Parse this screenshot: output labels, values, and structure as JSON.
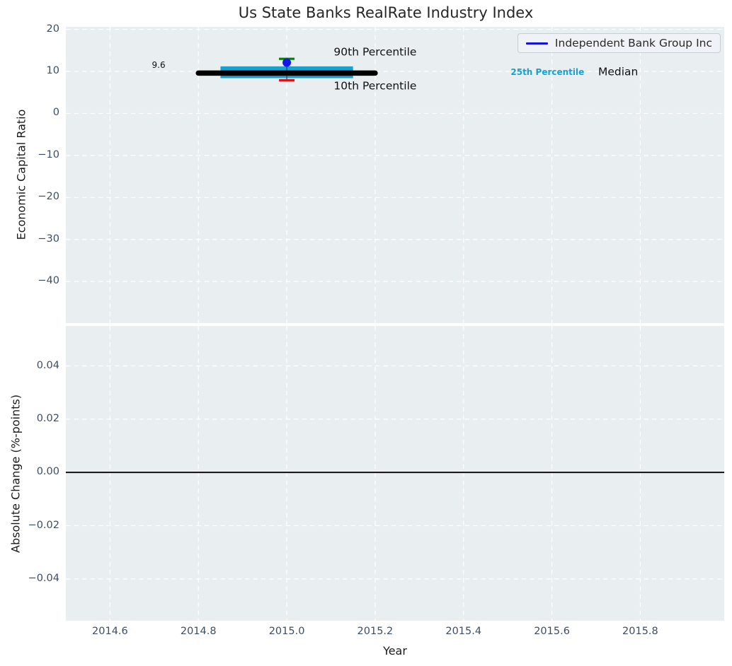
{
  "figure": {
    "title": "Us State Banks RealRate Industry Index",
    "background": "#ffffff",
    "plot_background": "#e9eef1",
    "grid_color": "#ffffff",
    "tick_color": "#3d4d63",
    "text_color": "#262626"
  },
  "legend": {
    "label": "Independent Bank Group Inc",
    "line_color": "#1111e0",
    "position": "upper right"
  },
  "chart_data": [
    {
      "type": "line",
      "title": "Us State Banks RealRate Industry Index",
      "xlabel": "Year",
      "ylabel": "Economic Capital Ratio",
      "xlim": [
        2014.5,
        2015.99
      ],
      "ylim": [
        -49.9,
        20.6
      ],
      "xtick_values": [
        2014.6,
        2014.8,
        2015.0,
        2015.2,
        2015.4,
        2015.6,
        2015.8
      ],
      "xtick_labels": [
        "2014.6",
        "2014.8",
        "2015.0",
        "2015.2",
        "2015.4",
        "2015.6",
        "2015.8"
      ],
      "ytick_values": [
        20,
        10,
        0,
        -10,
        -20,
        -30,
        -40
      ],
      "ytick_labels": [
        "20",
        "10",
        "0",
        "−10",
        "−20",
        "−30",
        "−40"
      ],
      "grid": {
        "style": "dashed",
        "color": "#ffffff"
      },
      "legend_position": "upper right",
      "series": [
        {
          "name": "Independent Bank Group Inc",
          "type": "scatter",
          "color": "#1515ee",
          "x": [
            2015.0
          ],
          "y": [
            12.1
          ]
        }
      ],
      "percentile_overlay": {
        "median": {
          "value": 9.6,
          "x_start": 2014.8,
          "x_end": 2015.2,
          "color": "#000000",
          "value_label": "9.6"
        },
        "iqr_box": {
          "p25": 8.4,
          "p75": 11.2,
          "x_start": 2014.85,
          "x_end": 2015.15,
          "color": "#18a0cf"
        },
        "whisker_x": 2015.0,
        "whisker_color": "#3a3a3a",
        "p90": {
          "value": 13.0,
          "cap_color": "#008000"
        },
        "p10": {
          "value": 7.9,
          "cap_color": "#e41010"
        }
      },
      "annotations": [
        {
          "text": "90th Percentile",
          "x": 2015.2,
          "y": 14.5,
          "color": "#111111",
          "size": 15.5,
          "weight": "normal"
        },
        {
          "text": "10th Percentile",
          "x": 2015.2,
          "y": 6.4,
          "color": "#111111",
          "size": 15.5,
          "weight": "normal"
        },
        {
          "text": "25th Percentile",
          "x": 2015.59,
          "y": 9.9,
          "color": "#18a0cf",
          "size": 12,
          "weight": "bold"
        },
        {
          "text": "Median",
          "x": 2015.75,
          "y": 9.8,
          "color": "#111111",
          "size": 15.5,
          "weight": "normal"
        },
        {
          "text": "9.6",
          "x": 2014.71,
          "y": 11.5,
          "color": "#111111",
          "size": 12,
          "weight": "normal"
        }
      ]
    },
    {
      "type": "line",
      "xlabel": "Year",
      "ylabel": "Absolute Change (%-points)",
      "xlim": [
        2014.5,
        2015.99
      ],
      "ylim": [
        -0.0557,
        0.055
      ],
      "xtick_values": [
        2014.6,
        2014.8,
        2015.0,
        2015.2,
        2015.4,
        2015.6,
        2015.8
      ],
      "xtick_labels": [
        "2014.6",
        "2014.8",
        "2015.0",
        "2015.2",
        "2015.4",
        "2015.6",
        "2015.8"
      ],
      "ytick_values": [
        0.04,
        0.02,
        0.0,
        -0.02,
        -0.04
      ],
      "ytick_labels": [
        "0.04",
        "0.02",
        "0.00",
        "−0.02",
        "−0.04"
      ],
      "grid": {
        "style": "dashed",
        "color": "#ffffff"
      },
      "zero_line": {
        "y": 0.0,
        "color": "#000000"
      },
      "series": []
    }
  ]
}
